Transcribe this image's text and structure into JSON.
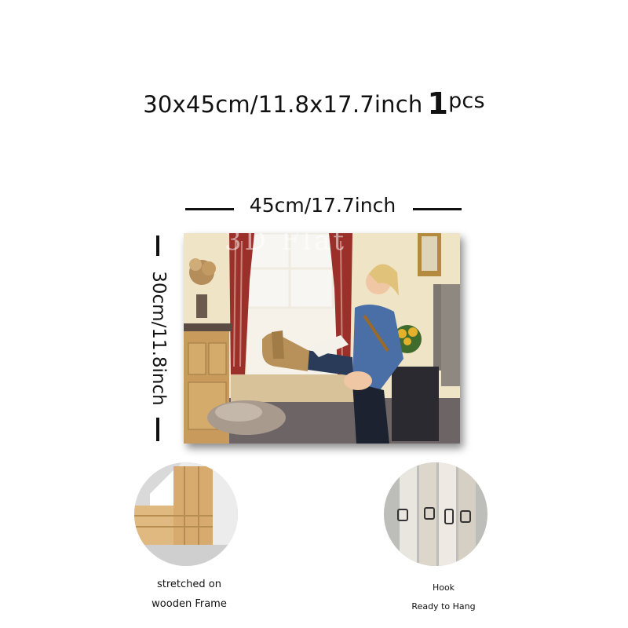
{
  "header": {
    "size_text": "30x45cm/11.8x17.7inch",
    "qty_number": "1",
    "qty_unit": "pcs"
  },
  "dimensions": {
    "width_label": "45cm/17.7inch",
    "height_label": "30cm/11.8inch"
  },
  "product_image": {
    "watermark": "3D Flat",
    "description_icon": "canvas-print-image"
  },
  "features": [
    {
      "lines": [
        "stretched on",
        "wooden Frame"
      ],
      "icon": "wooden-frame-photo"
    },
    {
      "lines": [
        "Hook",
        "Ready to Hang"
      ],
      "icon": "hook-photo"
    }
  ],
  "colors": {
    "text": "#111111",
    "background": "#ffffff"
  }
}
